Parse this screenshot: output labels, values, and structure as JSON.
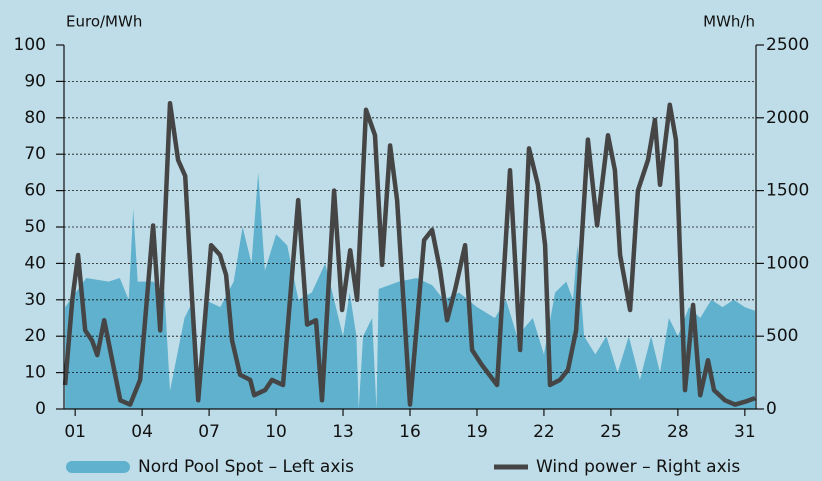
{
  "chart_data": {
    "type": "combo",
    "y_label": "Euro/MWh",
    "y2_label": "MWh/h",
    "xlim": [
      0.5,
      31.5
    ],
    "xticks": [
      {
        "value": 1,
        "label": "01"
      },
      {
        "value": 4,
        "label": "04"
      },
      {
        "value": 7,
        "label": "07"
      },
      10,
      13,
      16,
      19,
      22,
      25,
      28,
      31
    ],
    "ylim": [
      0,
      100
    ],
    "yticks": [
      0,
      10,
      20,
      30,
      40,
      50,
      60,
      70,
      80,
      90,
      100
    ],
    "y2lim": [
      0,
      2500
    ],
    "y2ticks": [
      0,
      500,
      1000,
      1500,
      2000,
      2500
    ],
    "grid": true,
    "legend": "bottom",
    "series": [
      {
        "name": "Nord Pool Spot – Left axis",
        "type": "area",
        "color": "#5fb1cd",
        "x": [
          0.55,
          1.5,
          2.5,
          3.0,
          3.4,
          3.6,
          3.8,
          4.5,
          5.0,
          5.25,
          5.9,
          6.3,
          6.5,
          6.8,
          7.5,
          8.1,
          8.5,
          8.9,
          9.2,
          9.5,
          10.0,
          10.5,
          11.0,
          11.6,
          12.2,
          12.6,
          13.0,
          13.3,
          13.6,
          13.7,
          13.9,
          14.3,
          14.5,
          14.6,
          15.5,
          16.3,
          17.0,
          17.5,
          18.2,
          19.0,
          19.8,
          20.3,
          20.8,
          21.5,
          22.0,
          22.5,
          23.0,
          23.3,
          23.5,
          23.8,
          24.3,
          24.8,
          25.3,
          25.8,
          26.3,
          26.8,
          27.2,
          27.6,
          28.0,
          28.5,
          29.0,
          29.5,
          30.0,
          30.5,
          31.0,
          31.46
        ],
        "values": [
          28,
          36,
          35,
          36,
          30,
          55,
          35,
          35,
          32,
          5,
          25,
          30,
          5,
          30,
          28,
          35,
          50,
          40,
          65,
          38,
          48,
          45,
          30,
          32,
          40,
          30,
          20,
          32,
          20,
          0,
          20,
          25,
          0,
          33,
          35,
          36,
          34,
          30,
          32,
          28,
          25,
          30,
          20,
          25,
          15,
          32,
          35,
          30,
          45,
          20,
          15,
          20,
          10,
          20,
          8,
          20,
          10,
          25,
          20,
          28,
          25,
          30,
          28,
          30,
          28,
          27
        ]
      },
      {
        "name": "Wind power – Right axis",
        "type": "line",
        "color": "#454545",
        "axis": "y2",
        "x": [
          0.55,
          0.87,
          1.13,
          1.45,
          1.76,
          1.99,
          2.3,
          2.66,
          3.02,
          3.46,
          3.91,
          4.49,
          4.81,
          5.25,
          5.61,
          5.93,
          6.24,
          6.51,
          7.09,
          7.49,
          7.76,
          8.03,
          8.39,
          8.84,
          9.02,
          9.51,
          9.82,
          10.31,
          10.99,
          11.39,
          11.79,
          12.06,
          12.6,
          12.96,
          13.32,
          13.63,
          14.03,
          14.43,
          14.75,
          15.11,
          15.42,
          16.0,
          16.63,
          16.99,
          17.35,
          17.66,
          18.02,
          18.47,
          18.78,
          19.23,
          19.9,
          20.48,
          20.93,
          21.33,
          21.73,
          22.05,
          22.27,
          22.72,
          23.08,
          23.44,
          23.97,
          24.38,
          24.87,
          25.18,
          25.41,
          25.86,
          26.21,
          26.66,
          26.97,
          27.2,
          27.64,
          27.91,
          28.32,
          28.68,
          29.0,
          29.35,
          29.62,
          30.11,
          30.56,
          31.01,
          31.46
        ],
        "values": [
          165,
          750,
          1058,
          540,
          470,
          370,
          610,
          335,
          60,
          30,
          200,
          1260,
          540,
          2100,
          1710,
          1600,
          750,
          60,
          1125,
          1058,
          920,
          470,
          235,
          200,
          95,
          130,
          200,
          165,
          1435,
          580,
          610,
          60,
          1500,
          680,
          1090,
          750,
          2055,
          1880,
          990,
          1810,
          1435,
          30,
          1160,
          1230,
          955,
          610,
          820,
          1125,
          405,
          300,
          165,
          1640,
          405,
          1790,
          1540,
          1125,
          165,
          200,
          270,
          540,
          1850,
          1260,
          1880,
          1640,
          1058,
          680,
          1500,
          1710,
          1985,
          1540,
          2090,
          1850,
          130,
          715,
          95,
          335,
          130,
          60,
          30,
          50,
          75
        ]
      }
    ]
  }
}
